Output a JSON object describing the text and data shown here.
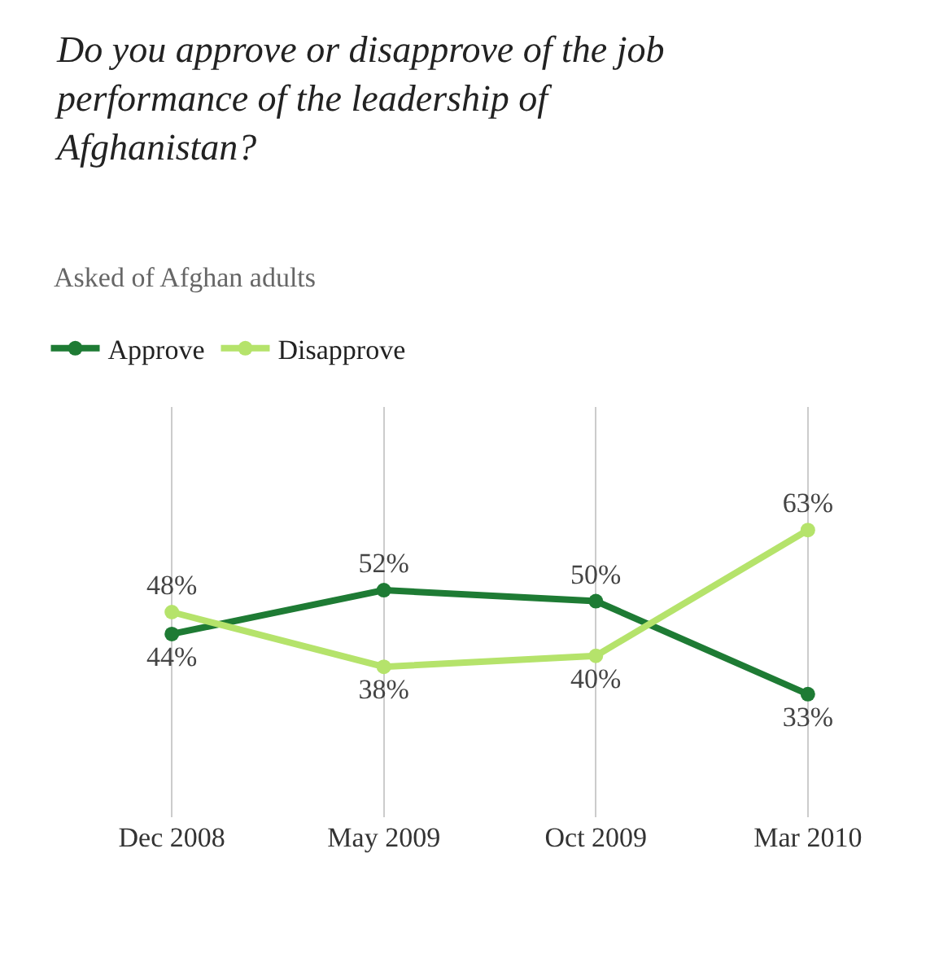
{
  "chart_data": {
    "type": "line",
    "title": "Do you approve or disapprove of the job performance of the leadership of Afghanistan?",
    "subtitle": "Asked of Afghan adults",
    "categories": [
      "Dec 2008",
      "May 2009",
      "Oct 2009",
      "Mar 2010"
    ],
    "series": [
      {
        "name": "Approve",
        "color": "#1e7b34",
        "values": [
          44,
          52,
          50,
          33
        ],
        "value_labels": [
          "44%",
          "52%",
          "50%",
          "33%"
        ]
      },
      {
        "name": "Disapprove",
        "color": "#b5e36b",
        "values": [
          48,
          38,
          40,
          63
        ],
        "value_labels": [
          "48%",
          "38%",
          "40%",
          "63%"
        ]
      }
    ],
    "grid": "x",
    "legend": "top left",
    "marker": "circle",
    "line_style": "solid"
  }
}
